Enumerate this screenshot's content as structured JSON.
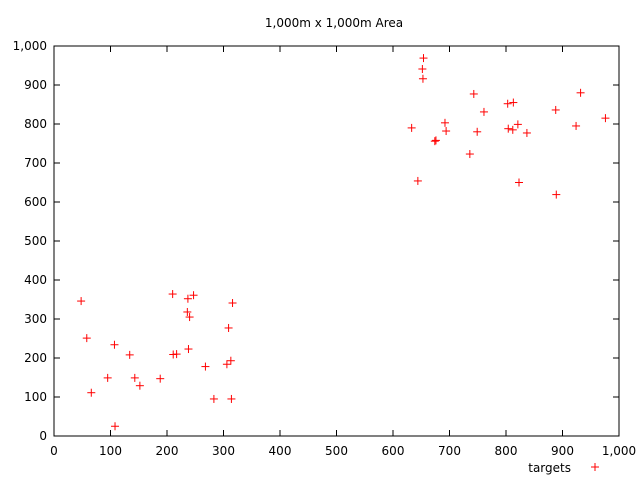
{
  "chart_data": {
    "type": "scatter",
    "title": "1,000m x 1,000m Area",
    "xlabel": "",
    "ylabel": "",
    "xlim": [
      0,
      1000
    ],
    "ylim": [
      0,
      1000
    ],
    "x_ticks": [
      0,
      100,
      200,
      300,
      400,
      500,
      600,
      700,
      800,
      900,
      1000
    ],
    "y_ticks": [
      0,
      100,
      200,
      300,
      400,
      500,
      600,
      700,
      800,
      900,
      1000
    ],
    "x_tick_labels": [
      "0",
      "100",
      "200",
      "300",
      "400",
      "500",
      "600",
      "700",
      "800",
      "900",
      "1,000"
    ],
    "y_tick_labels": [
      "0",
      "100",
      "200",
      "300",
      "400",
      "500",
      "600",
      "700",
      "800",
      "900",
      "1,000"
    ],
    "grid": false,
    "legend_position": "bottom-right",
    "series": [
      {
        "name": "targets",
        "marker": "plus",
        "color": "#ff0000",
        "points": [
          [
            48,
            346
          ],
          [
            58,
            251
          ],
          [
            66,
            111
          ],
          [
            95,
            149
          ],
          [
            107,
            234
          ],
          [
            108,
            25
          ],
          [
            134,
            208
          ],
          [
            143,
            149
          ],
          [
            152,
            129
          ],
          [
            188,
            147
          ],
          [
            210,
            364
          ],
          [
            211,
            209
          ],
          [
            217,
            210
          ],
          [
            236,
            318
          ],
          [
            237,
            352
          ],
          [
            238,
            223
          ],
          [
            240,
            305
          ],
          [
            247,
            361
          ],
          [
            268,
            178
          ],
          [
            283,
            95
          ],
          [
            306,
            184
          ],
          [
            309,
            277
          ],
          [
            313,
            193
          ],
          [
            314,
            95
          ],
          [
            316,
            341
          ],
          [
            633,
            790
          ],
          [
            644,
            654
          ],
          [
            652,
            941
          ],
          [
            653,
            916
          ],
          [
            654,
            969
          ],
          [
            674,
            756
          ],
          [
            676,
            758
          ],
          [
            692,
            803
          ],
          [
            694,
            782
          ],
          [
            736,
            723
          ],
          [
            743,
            877
          ],
          [
            749,
            780
          ],
          [
            761,
            831
          ],
          [
            803,
            852
          ],
          [
            804,
            788
          ],
          [
            812,
            785
          ],
          [
            813,
            855
          ],
          [
            821,
            799
          ],
          [
            823,
            650
          ],
          [
            837,
            777
          ],
          [
            888,
            836
          ],
          [
            889,
            619
          ],
          [
            924,
            795
          ],
          [
            932,
            880
          ],
          [
            976,
            815
          ]
        ]
      }
    ]
  }
}
